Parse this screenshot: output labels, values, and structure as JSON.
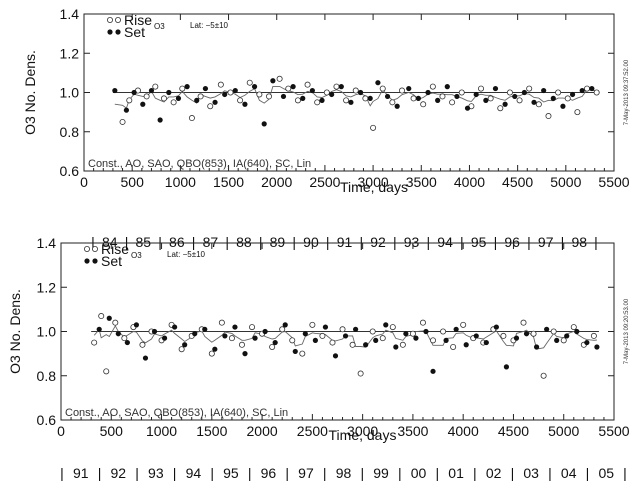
{
  "chart_data": [
    {
      "type": "scatter",
      "ylabel": "O3 No. Dens.",
      "xlabel": "Time, days",
      "xlim": [
        0,
        5500
      ],
      "ylim": [
        0.6,
        1.4
      ],
      "x_ticks": [
        "0",
        "500",
        "1000",
        "1500",
        "2000",
        "2500",
        "3000",
        "3500",
        "4000",
        "4500",
        "5000",
        "5500"
      ],
      "y_ticks": [
        "0.6",
        "0.8",
        "1.0",
        "1.2",
        "1.4"
      ],
      "legend": {
        "rise": "Rise",
        "set": "Set",
        "subscript": "O3",
        "lat": "Lat: −5±10"
      },
      "footnote": "Const., AO, SAO, QBO(853), IA(640), SC, Lin",
      "timestamp": "7-May-2013 09:37:52.00",
      "year_axis": [
        "84",
        "85",
        "86",
        "87",
        "88",
        "89",
        "90",
        "91",
        "92",
        "93",
        "94",
        "95",
        "96",
        "97",
        "98"
      ],
      "series": [
        {
          "name": "Rise",
          "marker": "open-circle",
          "x": [
            400,
            470,
            560,
            650,
            740,
            830,
            930,
            1020,
            1120,
            1210,
            1310,
            1420,
            1520,
            1620,
            1720,
            1820,
            1920,
            2030,
            2120,
            2220,
            2320,
            2420,
            2520,
            2620,
            2720,
            2820,
            2920,
            3000,
            3100,
            3200,
            3300,
            3420,
            3520,
            3620,
            3720,
            3820,
            3920,
            4020,
            4120,
            4220,
            4320,
            4420,
            4520,
            4620,
            4720,
            4820,
            4920,
            5020,
            5120,
            5220,
            5320
          ],
          "y": [
            0.85,
            0.96,
            1.01,
            0.98,
            1.03,
            0.97,
            0.95,
            1.02,
            0.87,
            0.98,
            0.93,
            1.04,
            1.0,
            0.96,
            1.05,
            0.99,
            0.98,
            1.07,
            1.02,
            0.96,
            1.04,
            0.95,
            1.0,
            1.03,
            0.96,
            1.01,
            0.97,
            0.82,
            1.02,
            0.95,
            1.01,
            0.97,
            0.94,
            1.03,
            0.98,
            0.95,
            1.0,
            0.93,
            1.02,
            0.97,
            0.92,
            1.0,
            0.96,
            1.02,
            0.94,
            0.88,
            1.0,
            0.97,
            0.9,
            1.02,
            1.0
          ]
        },
        {
          "name": "Set",
          "marker": "filled-circle",
          "x": [
            320,
            440,
            520,
            610,
            700,
            790,
            880,
            980,
            1070,
            1170,
            1260,
            1360,
            1460,
            1570,
            1670,
            1770,
            1870,
            1960,
            2070,
            2170,
            2270,
            2370,
            2470,
            2570,
            2670,
            2770,
            2870,
            2970,
            3050,
            3150,
            3250,
            3370,
            3470,
            3570,
            3670,
            3770,
            3870,
            3980,
            4070,
            4170,
            4270,
            4370,
            4470,
            4570,
            4670,
            4770,
            4870,
            4970,
            5070,
            5170,
            5270
          ],
          "y": [
            1.01,
            0.91,
            1.0,
            0.94,
            1.01,
            0.86,
            1.0,
            0.97,
            1.03,
            0.96,
            1.02,
            0.95,
            0.99,
            1.01,
            0.94,
            1.03,
            0.84,
            1.06,
            0.98,
            1.03,
            0.97,
            1.01,
            0.96,
            0.99,
            1.03,
            0.95,
            1.0,
            0.97,
            1.05,
            0.98,
            0.93,
            1.02,
            0.97,
            1.0,
            0.96,
            1.03,
            0.98,
            0.92,
            0.99,
            0.96,
            1.02,
            0.94,
            0.98,
            1.0,
            0.95,
            1.01,
            0.97,
            0.93,
            0.99,
            1.01,
            1.02
          ]
        }
      ]
    },
    {
      "type": "scatter",
      "ylabel": "O3 No. Dens.",
      "xlabel": "Time, days",
      "xlim": [
        0,
        5500
      ],
      "ylim": [
        0.6,
        1.4
      ],
      "x_ticks": [
        "0",
        "500",
        "1000",
        "1500",
        "2000",
        "2500",
        "3000",
        "3500",
        "4000",
        "4500",
        "5000",
        "5500"
      ],
      "y_ticks": [
        "0.6",
        "0.8",
        "1.0",
        "1.2",
        "1.4"
      ],
      "legend": {
        "rise": "Rise",
        "set": "Set",
        "subscript": "O3",
        "lat": "Lat: −5±10"
      },
      "footnote": "Const., AO, SAO, QBO(853), IA(640), SC, Lin",
      "timestamp": "7-May-2013 09:20:53.00",
      "year_axis": [
        "91",
        "92",
        "93",
        "94",
        "95",
        "96",
        "97",
        "98",
        "99",
        "00",
        "01",
        "02",
        "03",
        "04",
        "05"
      ],
      "series": [
        {
          "name": "Rise",
          "marker": "open-circle",
          "x": [
            330,
            400,
            450,
            540,
            630,
            720,
            810,
            900,
            1000,
            1100,
            1200,
            1300,
            1400,
            1500,
            1600,
            1700,
            1800,
            1900,
            2000,
            2100,
            2200,
            2300,
            2400,
            2500,
            2600,
            2700,
            2800,
            2900,
            2980,
            3100,
            3200,
            3300,
            3400,
            3500,
            3600,
            3700,
            3800,
            3900,
            4000,
            4100,
            4200,
            4300,
            4400,
            4500,
            4600,
            4700,
            4800,
            4900,
            5000,
            5100,
            5200,
            5300
          ],
          "y": [
            0.95,
            1.07,
            0.82,
            1.04,
            0.97,
            1.02,
            0.94,
            1.0,
            0.96,
            1.03,
            0.92,
            0.98,
            1.01,
            0.9,
            1.04,
            0.97,
            0.94,
            1.02,
            0.99,
            0.93,
            1.01,
            0.96,
            0.9,
            1.03,
            0.98,
            0.95,
            1.01,
            0.94,
            0.81,
            1.0,
            0.97,
            1.02,
            0.94,
            0.99,
            1.04,
            0.96,
            1.0,
            0.93,
            1.03,
            0.97,
            0.95,
            1.01,
            0.98,
            0.96,
            1.04,
            0.99,
            0.8,
            1.0,
            0.96,
            1.02,
            0.94,
            0.98
          ]
        },
        {
          "name": "Set",
          "marker": "filled-circle",
          "x": [
            380,
            480,
            570,
            660,
            750,
            840,
            930,
            1030,
            1130,
            1230,
            1330,
            1430,
            1530,
            1630,
            1730,
            1830,
            1930,
            2030,
            2130,
            2230,
            2330,
            2430,
            2530,
            2630,
            2730,
            2830,
            2930,
            3030,
            3130,
            3230,
            3330,
            3430,
            3530,
            3630,
            3700,
            3830,
            3930,
            4030,
            4130,
            4230,
            4330,
            4430,
            4530,
            4630,
            4730,
            4830,
            4930,
            5030,
            5130,
            5230,
            5330
          ],
          "y": [
            1.01,
            1.06,
            0.99,
            0.95,
            1.03,
            0.88,
            1.0,
            0.97,
            1.02,
            0.94,
            0.99,
            1.01,
            0.92,
            0.98,
            1.02,
            0.9,
            0.97,
            1.0,
            0.95,
            1.03,
            0.91,
            0.99,
            0.96,
            1.02,
            0.89,
            0.98,
            1.01,
            0.94,
            0.96,
            1.03,
            0.93,
            0.99,
            0.97,
            1.0,
            0.82,
            0.96,
            1.01,
            0.94,
            0.98,
            0.95,
            1.02,
            0.84,
            0.97,
            0.99,
            0.93,
            1.01,
            0.96,
            0.98,
            1.0,
            0.95,
            0.93
          ]
        }
      ]
    }
  ]
}
